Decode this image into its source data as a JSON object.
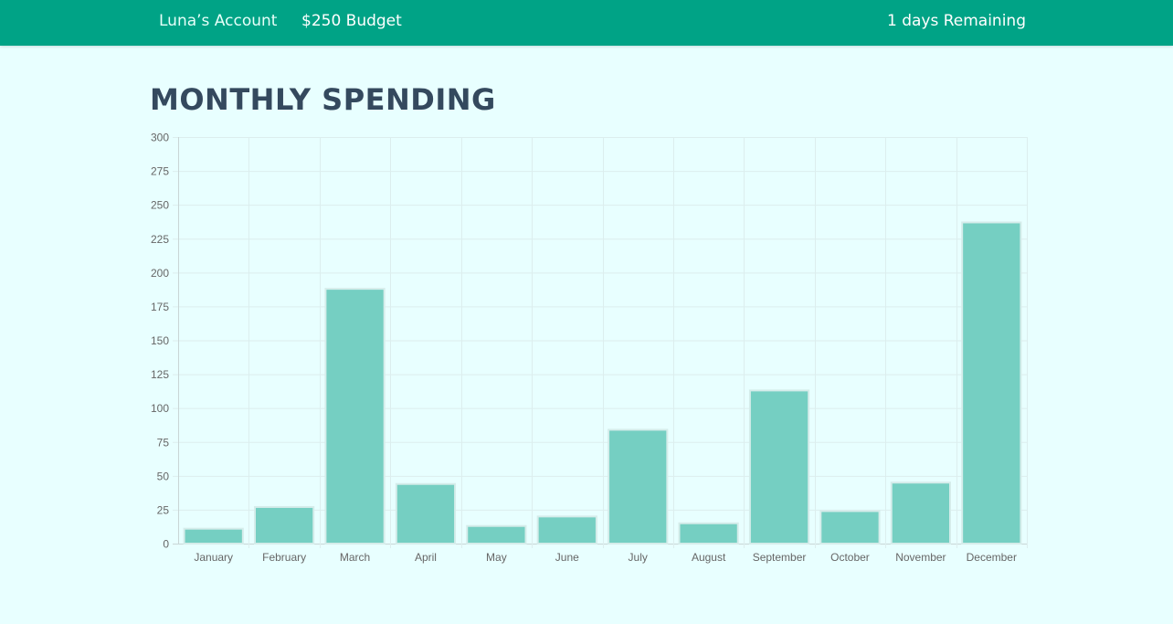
{
  "header": {
    "account_label": "Luna’s Account",
    "budget_label": "$250 Budget",
    "remaining_label": "1 days Remaining"
  },
  "page_title": "MONTHLY SPENDING",
  "colors": {
    "header_bg": "#00a386",
    "page_bg": "#e8ffff",
    "bar_fill": "#75cfc2",
    "bar_stroke": "#d5ecea",
    "title": "#34495e"
  },
  "chart_data": {
    "type": "bar",
    "title": "",
    "xlabel": "",
    "ylabel": "",
    "categories": [
      "January",
      "February",
      "March",
      "April",
      "May",
      "June",
      "July",
      "August",
      "September",
      "October",
      "November",
      "December"
    ],
    "values": [
      11,
      27,
      188,
      44,
      13,
      20,
      84,
      15,
      113,
      24,
      45,
      237
    ],
    "ylim": [
      0,
      300
    ],
    "yticks": [
      0,
      25,
      50,
      75,
      100,
      125,
      150,
      175,
      200,
      225,
      250,
      275,
      300
    ],
    "grid": true,
    "legend": "none"
  }
}
